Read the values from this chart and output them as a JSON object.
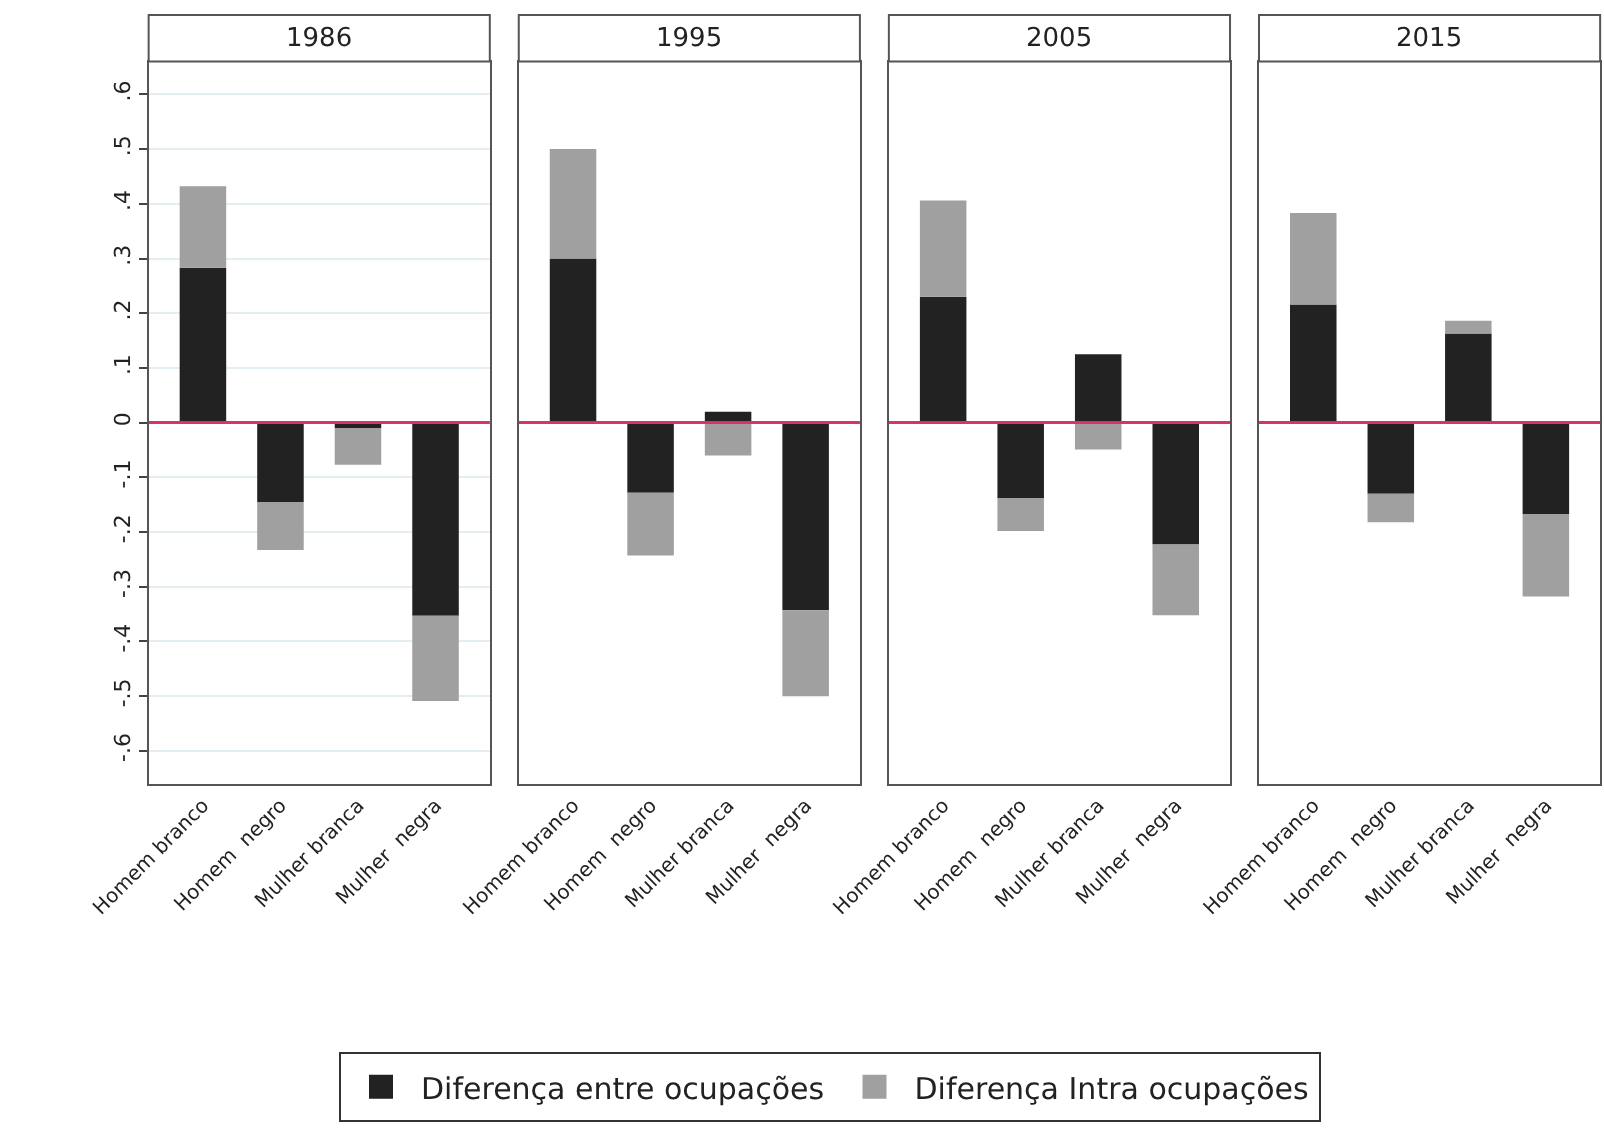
{
  "chart_data": [
    {
      "type": "bar",
      "title": "1986",
      "stacked": true,
      "categories": [
        "Homem branco",
        "Homem  negro",
        "Mulher branca",
        "Mulher  negra"
      ],
      "series": [
        {
          "name": "Diferença entre ocupações",
          "color": "#222222",
          "values": [
            0.283,
            -0.145,
            -0.01,
            -0.353
          ]
        },
        {
          "name": "Diferença Intra ocupações",
          "color": "#a0a0a0",
          "values": [
            0.149,
            -0.088,
            -0.067,
            -0.156
          ]
        }
      ],
      "ylim": [
        -0.66,
        0.66
      ],
      "yticks": [
        {
          "value": -0.6,
          "label": "-.6"
        },
        {
          "value": -0.5,
          "label": "-.5"
        },
        {
          "value": -0.4,
          "label": "-.4"
        },
        {
          "value": -0.3,
          "label": "-.3"
        },
        {
          "value": -0.2,
          "label": "-.2"
        },
        {
          "value": -0.1,
          "label": "-.1"
        },
        0,
        {
          "value": 0.1,
          "label": ".1"
        },
        {
          "value": 0.2,
          "label": ".2"
        },
        {
          "value": 0.3,
          "label": ".3"
        },
        {
          "value": 0.4,
          "label": ".4"
        },
        {
          "value": 0.5,
          "label": ".5"
        },
        {
          "value": 0.6,
          "label": ".6"
        }
      ],
      "ref_lines": [
        {
          "axis": "y",
          "value": 0,
          "color": "#d6336c"
        }
      ],
      "grid": "y",
      "legend": "bottom"
    },
    {
      "type": "bar",
      "title": "1995",
      "stacked": true,
      "categories": [
        "Homem branco",
        "Homem  negro",
        "Mulher branca",
        "Mulher  negra"
      ],
      "series": [
        {
          "color": "#222222",
          "values": [
            0.3,
            -0.128,
            0.02,
            -0.343
          ]
        },
        {
          "color": "#a0a0a0",
          "values": [
            0.2,
            -0.115,
            -0.06,
            -0.157
          ]
        }
      ],
      "ylim": [
        -0.66,
        0.66
      ],
      "tick_labels": "x",
      "ref_lines": [
        {
          "axis": "y",
          "value": 0,
          "color": "#d6336c"
        }
      ],
      "grid": "y"
    },
    {
      "type": "bar",
      "title": "2005",
      "stacked": true,
      "categories": [
        "Homem branco",
        "Homem  negro",
        "Mulher branca",
        "Mulher  negra"
      ],
      "series": [
        {
          "color": "#222222",
          "values": [
            0.23,
            -0.138,
            0.125,
            -0.223
          ]
        },
        {
          "color": "#a0a0a0",
          "values": [
            0.176,
            -0.06,
            -0.049,
            -0.129
          ]
        }
      ],
      "ylim": [
        -0.66,
        0.66
      ],
      "tick_labels": "x",
      "ref_lines": [
        {
          "axis": "y",
          "value": 0,
          "color": "#d6336c"
        }
      ],
      "grid": "y"
    },
    {
      "type": "bar",
      "title": "2015",
      "stacked": true,
      "categories": [
        "Homem branco",
        "Homem  negro",
        "Mulher branca",
        "Mulher  negra"
      ],
      "series": [
        {
          "color": "#222222",
          "values": [
            0.216,
            -0.13,
            0.163,
            -0.167
          ]
        },
        {
          "color": "#a0a0a0",
          "values": [
            0.167,
            -0.052,
            0.023,
            -0.151
          ]
        }
      ],
      "ylim": [
        -0.66,
        0.66
      ],
      "tick_labels": "x",
      "ref_lines": [
        {
          "axis": "y",
          "value": 0,
          "color": "#d6336c"
        }
      ],
      "grid": "y"
    }
  ]
}
